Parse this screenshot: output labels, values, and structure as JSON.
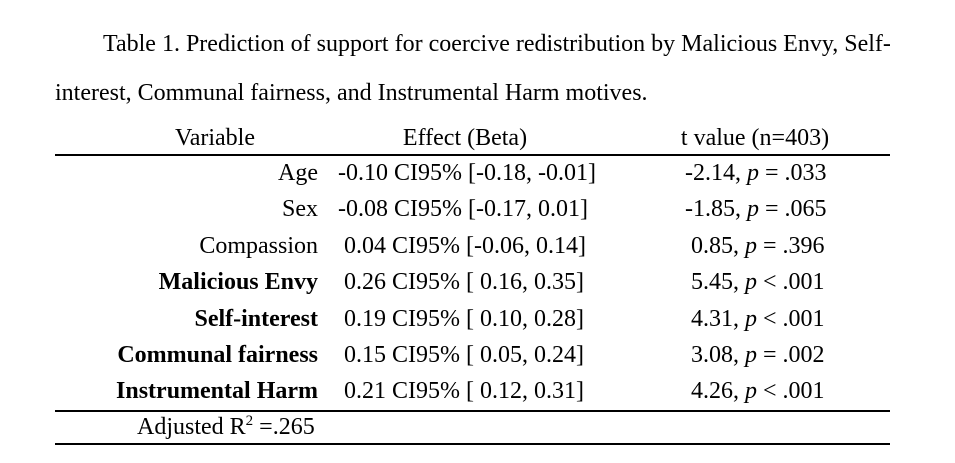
{
  "title": {
    "line1": "Table 1. Prediction of support for coercive redistribution by Malicious Envy, Self-",
    "line2": "interest, Communal fairness, and Instrumental Harm motives."
  },
  "table": {
    "headers": {
      "variable": "Variable",
      "effect": "Effect (Beta)",
      "t": "t value (n=403)"
    },
    "p_symbol": "p",
    "rows": [
      {
        "variable": "Age",
        "effect": "-0.10 CI95% [-0.18, -0.01]",
        "t_value": "-2.14, ",
        "p_rest": " = .033"
      },
      {
        "variable": "Sex",
        "effect": "-0.08 CI95% [-0.17, 0.01]",
        "t_value": "-1.85, ",
        "p_rest": " = .065"
      },
      {
        "variable": "Compassion",
        "effect": " 0.04 CI95% [-0.06, 0.14]",
        "t_value": " 0.85, ",
        "p_rest": " = .396"
      },
      {
        "variable": "Malicious Envy",
        "effect": " 0.26 CI95% [ 0.16, 0.35]",
        "t_value": " 5.45, ",
        "p_rest": " < .001"
      },
      {
        "variable": "Self-interest",
        "effect": " 0.19 CI95% [ 0.10, 0.28]",
        "t_value": " 4.31, ",
        "p_rest": " < .001"
      },
      {
        "variable": "Communal fairness",
        "effect": " 0.15 CI95% [ 0.05, 0.24]",
        "t_value": " 3.08, ",
        "p_rest": " = .002"
      },
      {
        "variable": "Instrumental Harm",
        "effect": " 0.21 CI95% [ 0.12, 0.31]",
        "t_value": " 4.26, ",
        "p_rest": " < .001"
      }
    ],
    "footer": {
      "label": "Adjusted R",
      "sup": "2",
      "value": " =.265"
    }
  }
}
